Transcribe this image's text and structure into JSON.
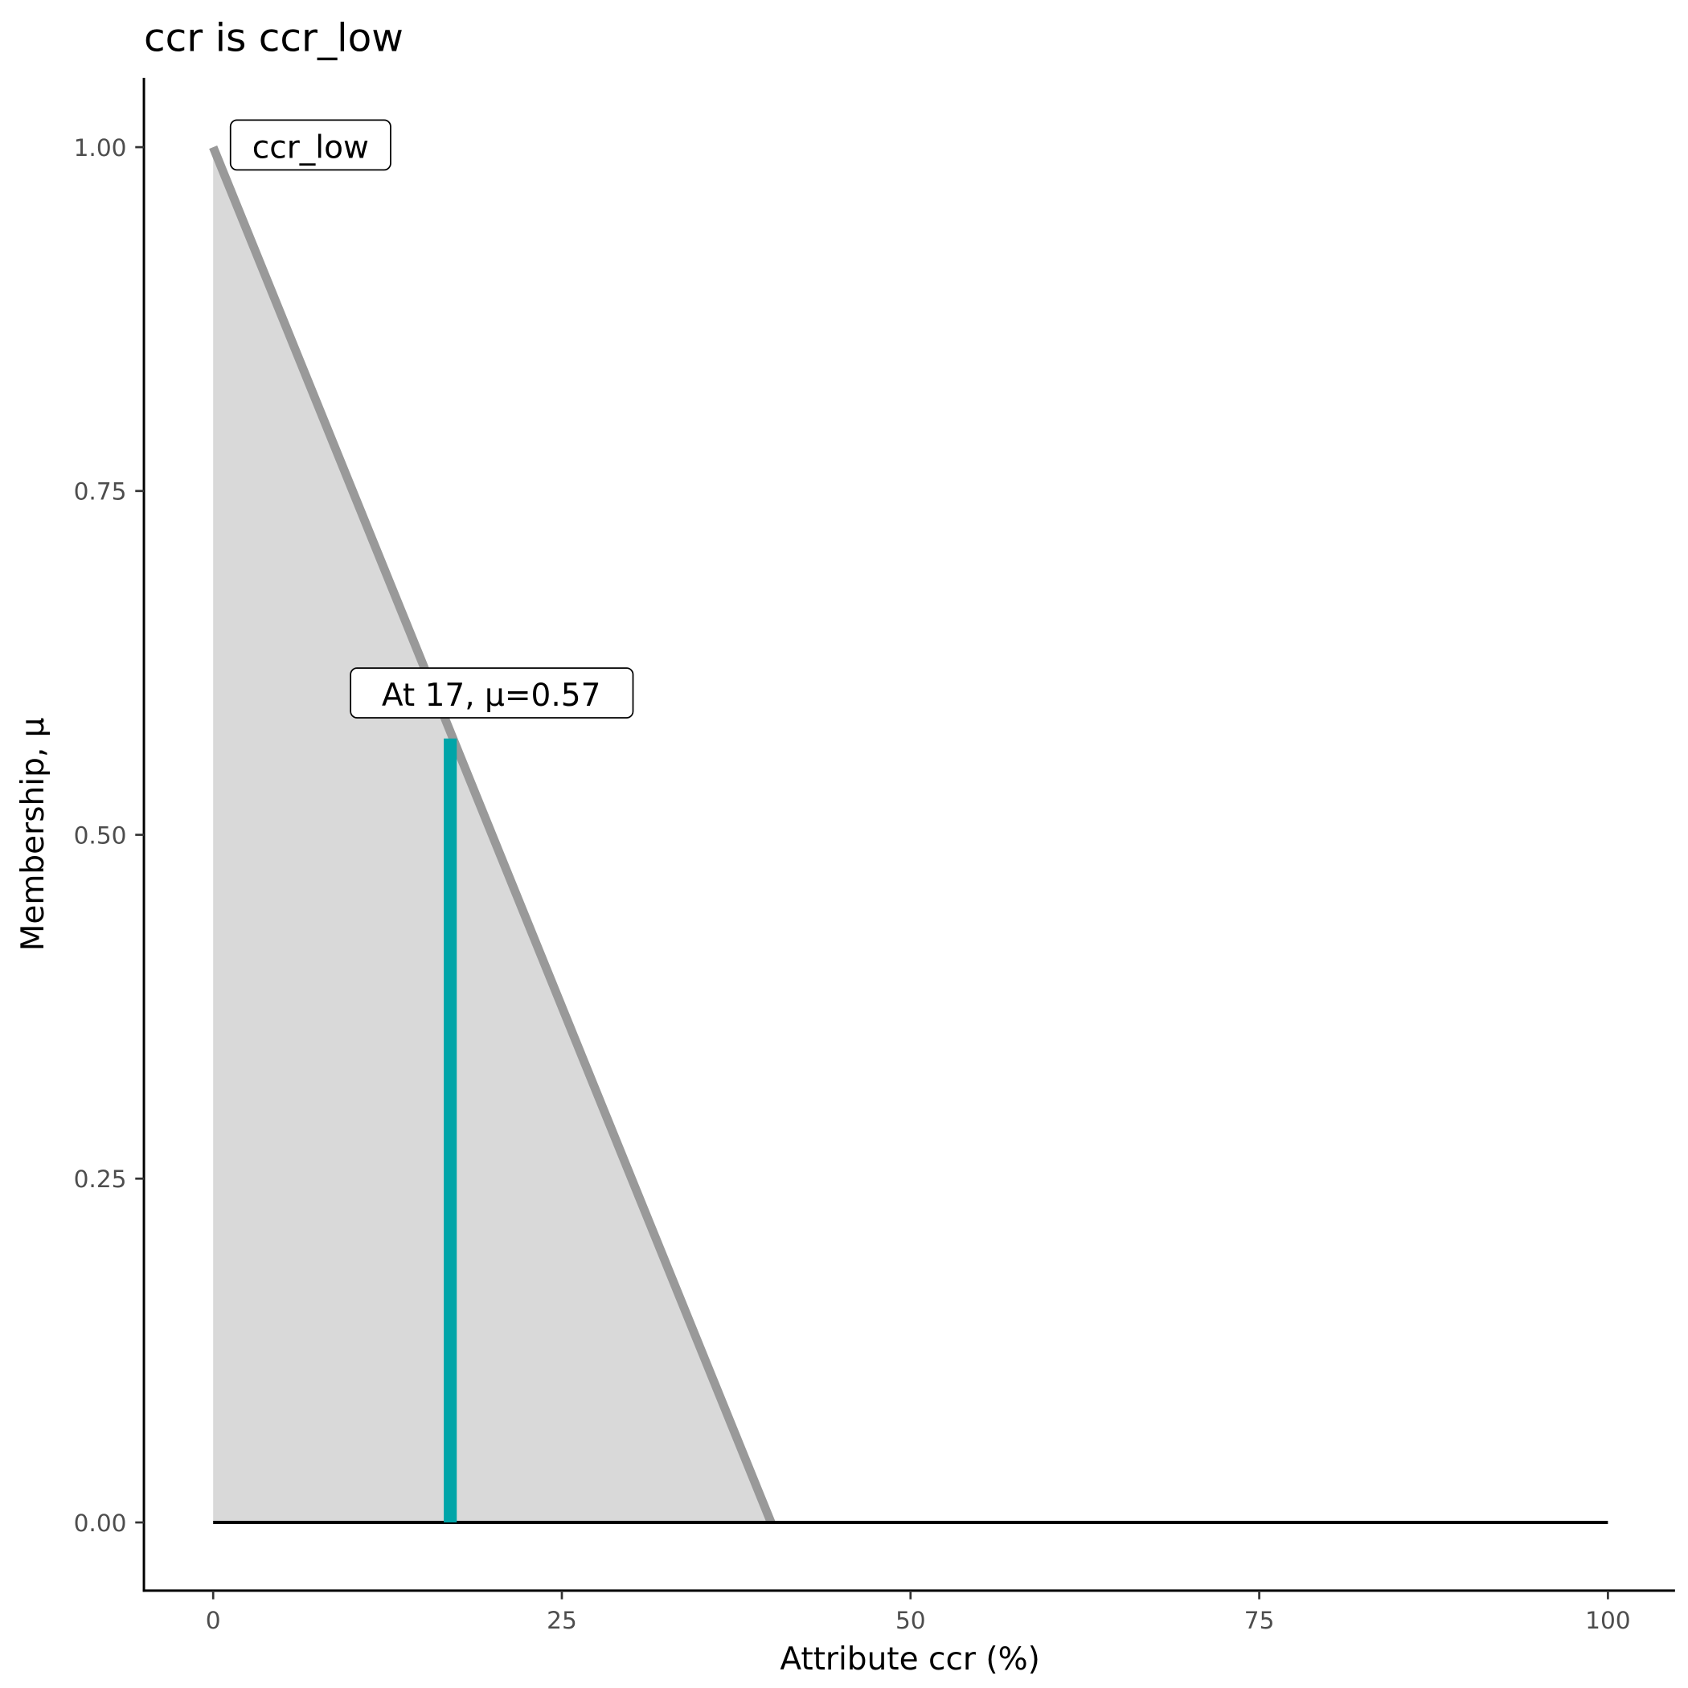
{
  "chart_data": {
    "type": "area",
    "title": "ccr is ccr_low",
    "xlabel": "Attribute ccr (%)",
    "ylabel": "Membership, μ",
    "xlim": [
      -5,
      105
    ],
    "ylim": [
      -0.05,
      1.05
    ],
    "x_ticks": [
      0,
      25,
      50,
      75,
      100
    ],
    "x_tick_labels": [
      "0",
      "25",
      "50",
      "75",
      "100"
    ],
    "y_ticks": [
      0,
      0.25,
      0.5,
      0.75,
      1.0
    ],
    "y_tick_labels": [
      "0.00",
      "0.25",
      "0.50",
      "0.75",
      "1.00"
    ],
    "grid": false,
    "membership": {
      "name": "ccr_low",
      "x": [
        0,
        40,
        100
      ],
      "y": [
        1,
        0,
        0
      ],
      "fill_color": "#d9d9d9",
      "line_color": "#999999"
    },
    "baseline": {
      "x": [
        0,
        100
      ],
      "y": [
        0,
        0
      ],
      "color": "#000000"
    },
    "highlight": {
      "x": 17,
      "mu": 0.57,
      "color": "#00a5a8"
    },
    "annotations": [
      {
        "text": "ccr_low",
        "x": 0,
        "y": 1.0
      },
      {
        "text": "At 17, μ=0.57",
        "x": 17,
        "y": 0.6
      }
    ]
  }
}
